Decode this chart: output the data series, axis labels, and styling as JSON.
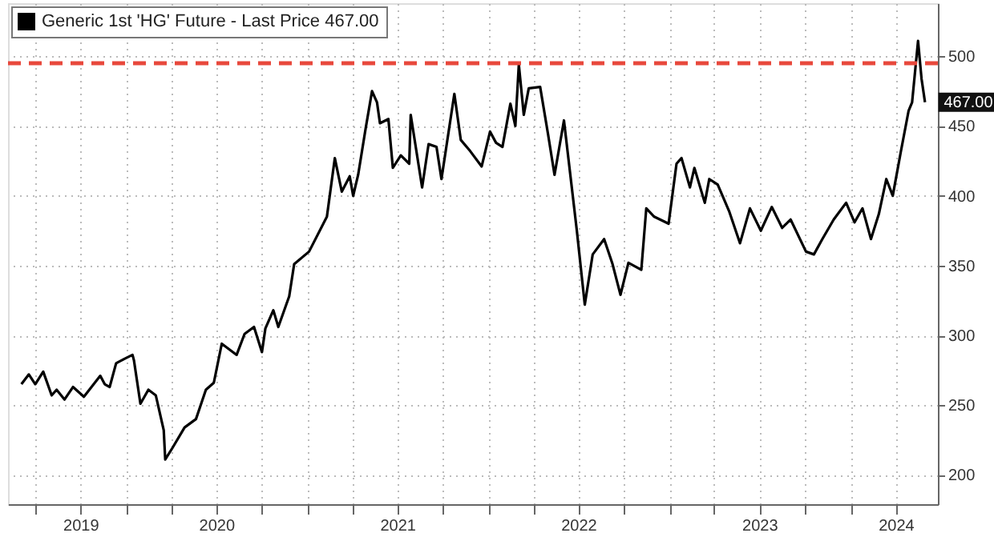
{
  "chart_data": {
    "type": "line",
    "x": [
      "2019-06-04",
      "2019-06-19",
      "2019-07-02",
      "2019-07-18",
      "2019-08-04",
      "2019-08-14",
      "2019-08-30",
      "2019-09-16",
      "2019-10-08",
      "2019-11-10",
      "2019-11-19",
      "2019-11-29",
      "2019-12-12",
      "2019-12-28",
      "2020-01-14",
      "2020-01-17",
      "2020-01-30",
      "2020-02-15",
      "2020-03-01",
      "2020-03-17",
      "2020-03-20",
      "2020-04-03",
      "2020-04-28",
      "2020-05-21",
      "2020-06-10",
      "2020-06-26",
      "2020-07-12",
      "2020-08-11",
      "2020-08-27",
      "2020-09-15",
      "2020-10-01",
      "2020-10-08",
      "2020-10-24",
      "2020-11-03",
      "2020-11-25",
      "2020-12-05",
      "2021-01-04",
      "2021-02-09",
      "2021-02-25",
      "2021-03-11",
      "2021-03-27",
      "2021-04-03",
      "2021-04-13",
      "2021-04-28",
      "2021-05-11",
      "2021-05-21",
      "2021-05-27",
      "2021-06-13",
      "2021-06-22",
      "2021-07-08",
      "2021-07-25",
      "2021-07-28",
      "2021-08-20",
      "2021-09-02",
      "2021-09-18",
      "2021-09-28",
      "2021-10-24",
      "2021-11-06",
      "2021-11-25",
      "2021-12-18",
      "2022-01-04",
      "2022-01-16",
      "2022-01-29",
      "2022-02-14",
      "2022-02-24",
      "2022-03-03",
      "2022-03-13",
      "2022-03-23",
      "2022-04-15",
      "2022-05-01",
      "2022-05-14",
      "2022-06-02",
      "2022-06-28",
      "2022-07-14",
      "2022-07-30",
      "2022-08-22",
      "2022-09-08",
      "2022-09-24",
      "2022-10-10",
      "2022-11-05",
      "2022-11-15",
      "2022-12-01",
      "2022-12-30",
      "2023-01-15",
      "2023-01-25",
      "2023-02-11",
      "2023-02-20",
      "2023-03-13",
      "2023-03-22",
      "2023-04-08",
      "2023-05-01",
      "2023-05-23",
      "2023-06-12",
      "2023-07-04",
      "2023-07-26",
      "2023-08-16",
      "2023-09-02",
      "2023-10-03",
      "2023-10-19",
      "2023-11-05",
      "2023-11-28",
      "2023-12-23",
      "2024-01-09",
      "2024-01-25",
      "2024-02-11",
      "2024-02-27",
      "2024-03-13",
      "2024-03-26",
      "2024-04-11",
      "2024-04-27",
      "2024-05-04",
      "2024-05-16",
      "2024-05-23",
      "2024-05-30"
    ],
    "series": [
      {
        "name": "Generic 1st 'HG' Future - Last Price 467.00",
        "color": "#000000",
        "values": [
          265,
          272,
          265,
          274,
          257,
          261,
          254,
          263,
          256,
          271,
          265,
          263,
          280,
          283,
          286,
          282,
          251,
          261,
          257,
          232,
          211,
          219,
          234,
          240,
          261,
          266,
          294,
          286,
          301,
          306,
          288,
          305,
          318,
          306,
          328,
          351,
          360,
          385,
          427,
          403,
          414,
          400,
          415,
          448,
          475,
          467,
          452,
          455,
          420,
          429,
          423,
          458,
          406,
          437,
          435,
          412,
          473,
          440,
          432,
          421,
          446,
          438,
          435,
          466,
          450,
          494,
          458,
          477,
          478,
          444,
          415,
          454,
          375,
          322,
          358,
          369,
          351,
          329,
          352,
          347,
          391,
          385,
          380,
          423,
          427,
          406,
          420,
          395,
          412,
          408,
          389,
          366,
          391,
          375,
          392,
          377,
          383,
          360,
          358,
          369,
          383,
          395,
          381,
          391,
          369,
          387,
          412,
          400,
          431,
          461,
          467,
          511,
          484,
          467
        ]
      }
    ],
    "xlim": [
      "2019-05-08",
      "2024-06-25"
    ],
    "xticks": [
      {
        "value": "2019-07-01",
        "label": null
      },
      {
        "value": "2019-10-01",
        "label": "2019"
      },
      {
        "value": "2020-01-01",
        "label": null
      },
      {
        "value": "2020-04-01",
        "label": null
      },
      {
        "value": "2020-07-01",
        "label": "2020"
      },
      {
        "value": "2020-10-01",
        "label": null
      },
      {
        "value": "2021-01-01",
        "label": null
      },
      {
        "value": "2021-04-01",
        "label": null
      },
      {
        "value": "2021-07-01",
        "label": "2021"
      },
      {
        "value": "2021-10-01",
        "label": null
      },
      {
        "value": "2022-01-01",
        "label": null
      },
      {
        "value": "2022-04-01",
        "label": null
      },
      {
        "value": "2022-07-01",
        "label": "2022"
      },
      {
        "value": "2022-10-01",
        "label": null
      },
      {
        "value": "2023-01-01",
        "label": null
      },
      {
        "value": "2023-04-01",
        "label": null
      },
      {
        "value": "2023-07-01",
        "label": "2023"
      },
      {
        "value": "2023-10-01",
        "label": null
      },
      {
        "value": "2024-01-01",
        "label": null
      },
      {
        "value": "2024-04-01",
        "label": "2024"
      }
    ],
    "ylim": [
      179,
      538
    ],
    "yticks": [
      200,
      250,
      300,
      350,
      400,
      450,
      500
    ],
    "ref_lines": [
      {
        "axis": "y",
        "value": 495,
        "color": "#e8483c",
        "line_style": "dashed"
      }
    ],
    "annotations": [
      {
        "text": "467.00",
        "x": "2024-05-30",
        "y": 467
      }
    ],
    "grid": true,
    "legend": "top left",
    "marker": "none",
    "line_style": "solid"
  }
}
